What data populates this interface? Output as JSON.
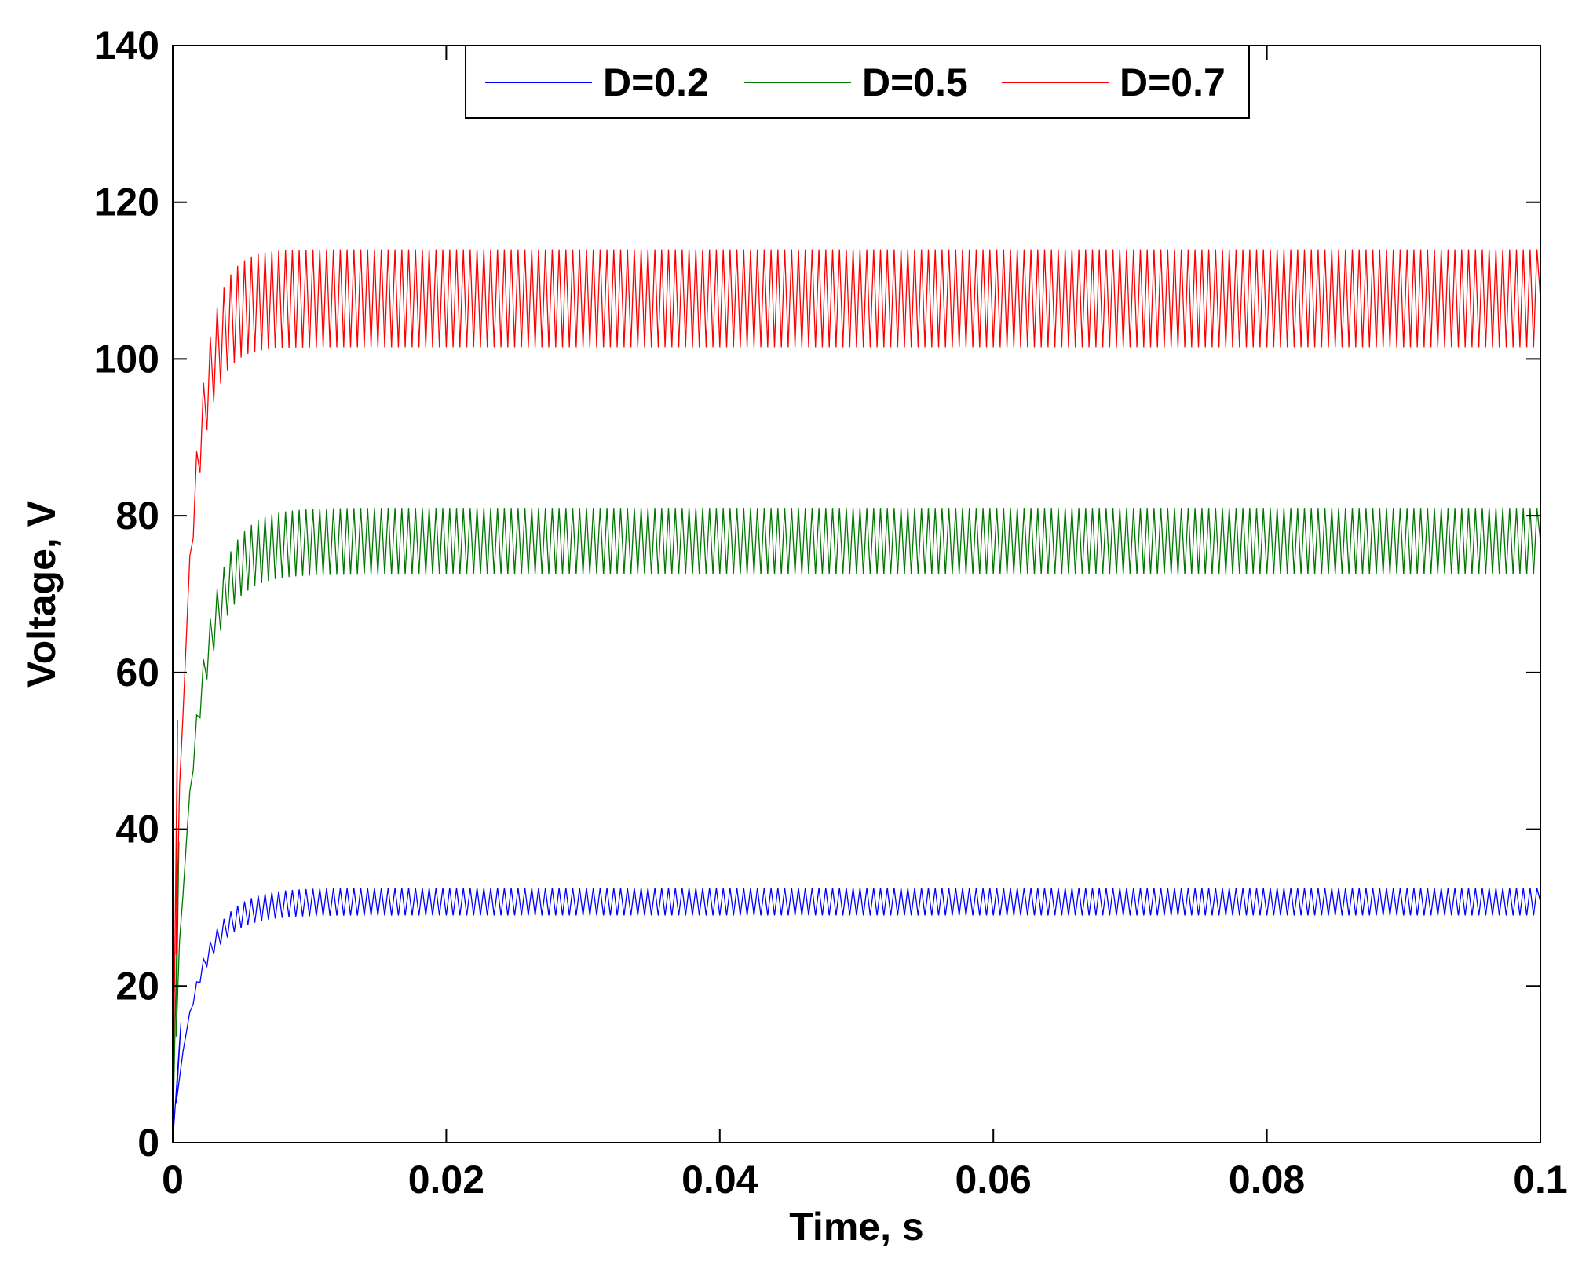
{
  "chart_data": {
    "type": "line",
    "xlabel": "Time, s",
    "ylabel": "Voltage, V",
    "xlim": [
      0,
      0.1
    ],
    "ylim": [
      0,
      140
    ],
    "x_ticks": [
      "0",
      "0.02",
      "0.04",
      "0.06",
      "0.08",
      "0.1"
    ],
    "y_ticks": [
      "0",
      "20",
      "40",
      "60",
      "80",
      "100",
      "120",
      "140"
    ],
    "grid": false,
    "legend_position": "top",
    "ripple_period_s": 0.0005,
    "series": [
      {
        "name": "D=0.2",
        "color": "#0000ff",
        "steady_min": 29,
        "steady_max": 32.5,
        "initial_peak_time_s": 0.0012,
        "time_constant_s": 0.0018
      },
      {
        "name": "D=0.5",
        "color": "#007700",
        "steady_min": 72.5,
        "steady_max": 81,
        "initial_peak_time_s": 0.0009,
        "time_constant_s": 0.0016
      },
      {
        "name": "D=0.7",
        "color": "#ff0000",
        "steady_min": 101.5,
        "steady_max": 114,
        "initial_peak_time_s": 0.0007,
        "time_constant_s": 0.0012
      }
    ]
  }
}
